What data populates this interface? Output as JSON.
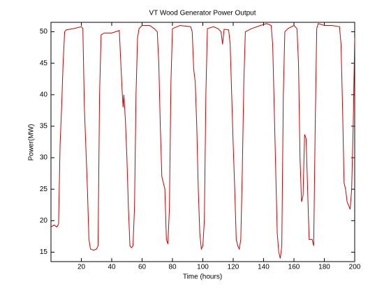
{
  "chart_data": {
    "type": "line",
    "title": "VT Wood Generator Power Output",
    "x_label": "Time (hours)",
    "y_label": "Power(MW)",
    "xlim": [
      0,
      200
    ],
    "xticks": [
      20,
      40,
      60,
      80,
      100,
      120,
      140,
      160,
      180,
      200
    ],
    "ylim": [
      13.5,
      51.5
    ],
    "yticks": [
      15,
      20,
      25,
      30,
      35,
      40,
      45,
      50
    ],
    "series": [
      {
        "color": "#cc0000",
        "x": [
          0,
          2,
          4,
          5,
          6,
          7,
          8,
          9,
          10,
          15,
          20,
          21,
          22,
          24,
          25,
          26,
          28,
          30,
          31,
          32,
          33,
          35,
          40,
          45,
          46,
          47,
          47.5,
          48,
          49,
          50,
          51,
          52,
          53,
          54,
          55,
          56,
          57,
          58,
          60,
          65,
          68,
          70,
          71,
          72,
          73,
          74,
          75,
          76,
          77,
          78,
          79,
          80,
          85,
          92,
          93,
          94,
          95,
          96,
          97,
          98,
          99,
          100,
          101,
          102,
          103,
          107,
          110,
          112,
          113,
          114,
          117,
          118,
          119,
          120,
          121,
          122,
          123,
          124,
          125,
          126,
          127,
          128,
          132,
          138,
          142,
          145,
          146,
          147,
          148,
          149,
          150,
          151,
          152,
          153,
          154,
          156,
          160,
          162,
          163,
          164,
          165,
          166,
          167,
          168,
          169,
          170,
          172,
          173,
          174,
          175,
          176,
          180,
          185,
          190,
          191,
          192,
          193,
          194,
          195,
          197,
          198,
          199,
          200
        ],
        "values": [
          19,
          19.3,
          19,
          19.5,
          32,
          38,
          45,
          50,
          50.3,
          50.5,
          50.8,
          50.5,
          38,
          25,
          17,
          15.5,
          15.3,
          15.5,
          16,
          40,
          49.5,
          49.8,
          49.8,
          50.2,
          45,
          40,
          38,
          40,
          36,
          30,
          22,
          16,
          15.7,
          16,
          22,
          40,
          49,
          50.5,
          51,
          51,
          50.5,
          50,
          45,
          35,
          27,
          26,
          25,
          17,
          16.3,
          22,
          42,
          50.5,
          51,
          50.8,
          50,
          44,
          42,
          35,
          25,
          18,
          15.5,
          16,
          20,
          40,
          50.5,
          50.8,
          50.5,
          50,
          48,
          50.4,
          50.3,
          48,
          40,
          32,
          25,
          17,
          16,
          15.5,
          17,
          28,
          42,
          50,
          50.5,
          51,
          51.3,
          51,
          48,
          38,
          28,
          18,
          15,
          14,
          16,
          40,
          50,
          50.5,
          51,
          50.5,
          45,
          30,
          23,
          24,
          33.7,
          33,
          25,
          17,
          17,
          16,
          35,
          50.5,
          51.3,
          51,
          51,
          50.8,
          48,
          38,
          26,
          25,
          23,
          21.8,
          25,
          35,
          49
        ]
      }
    ]
  }
}
